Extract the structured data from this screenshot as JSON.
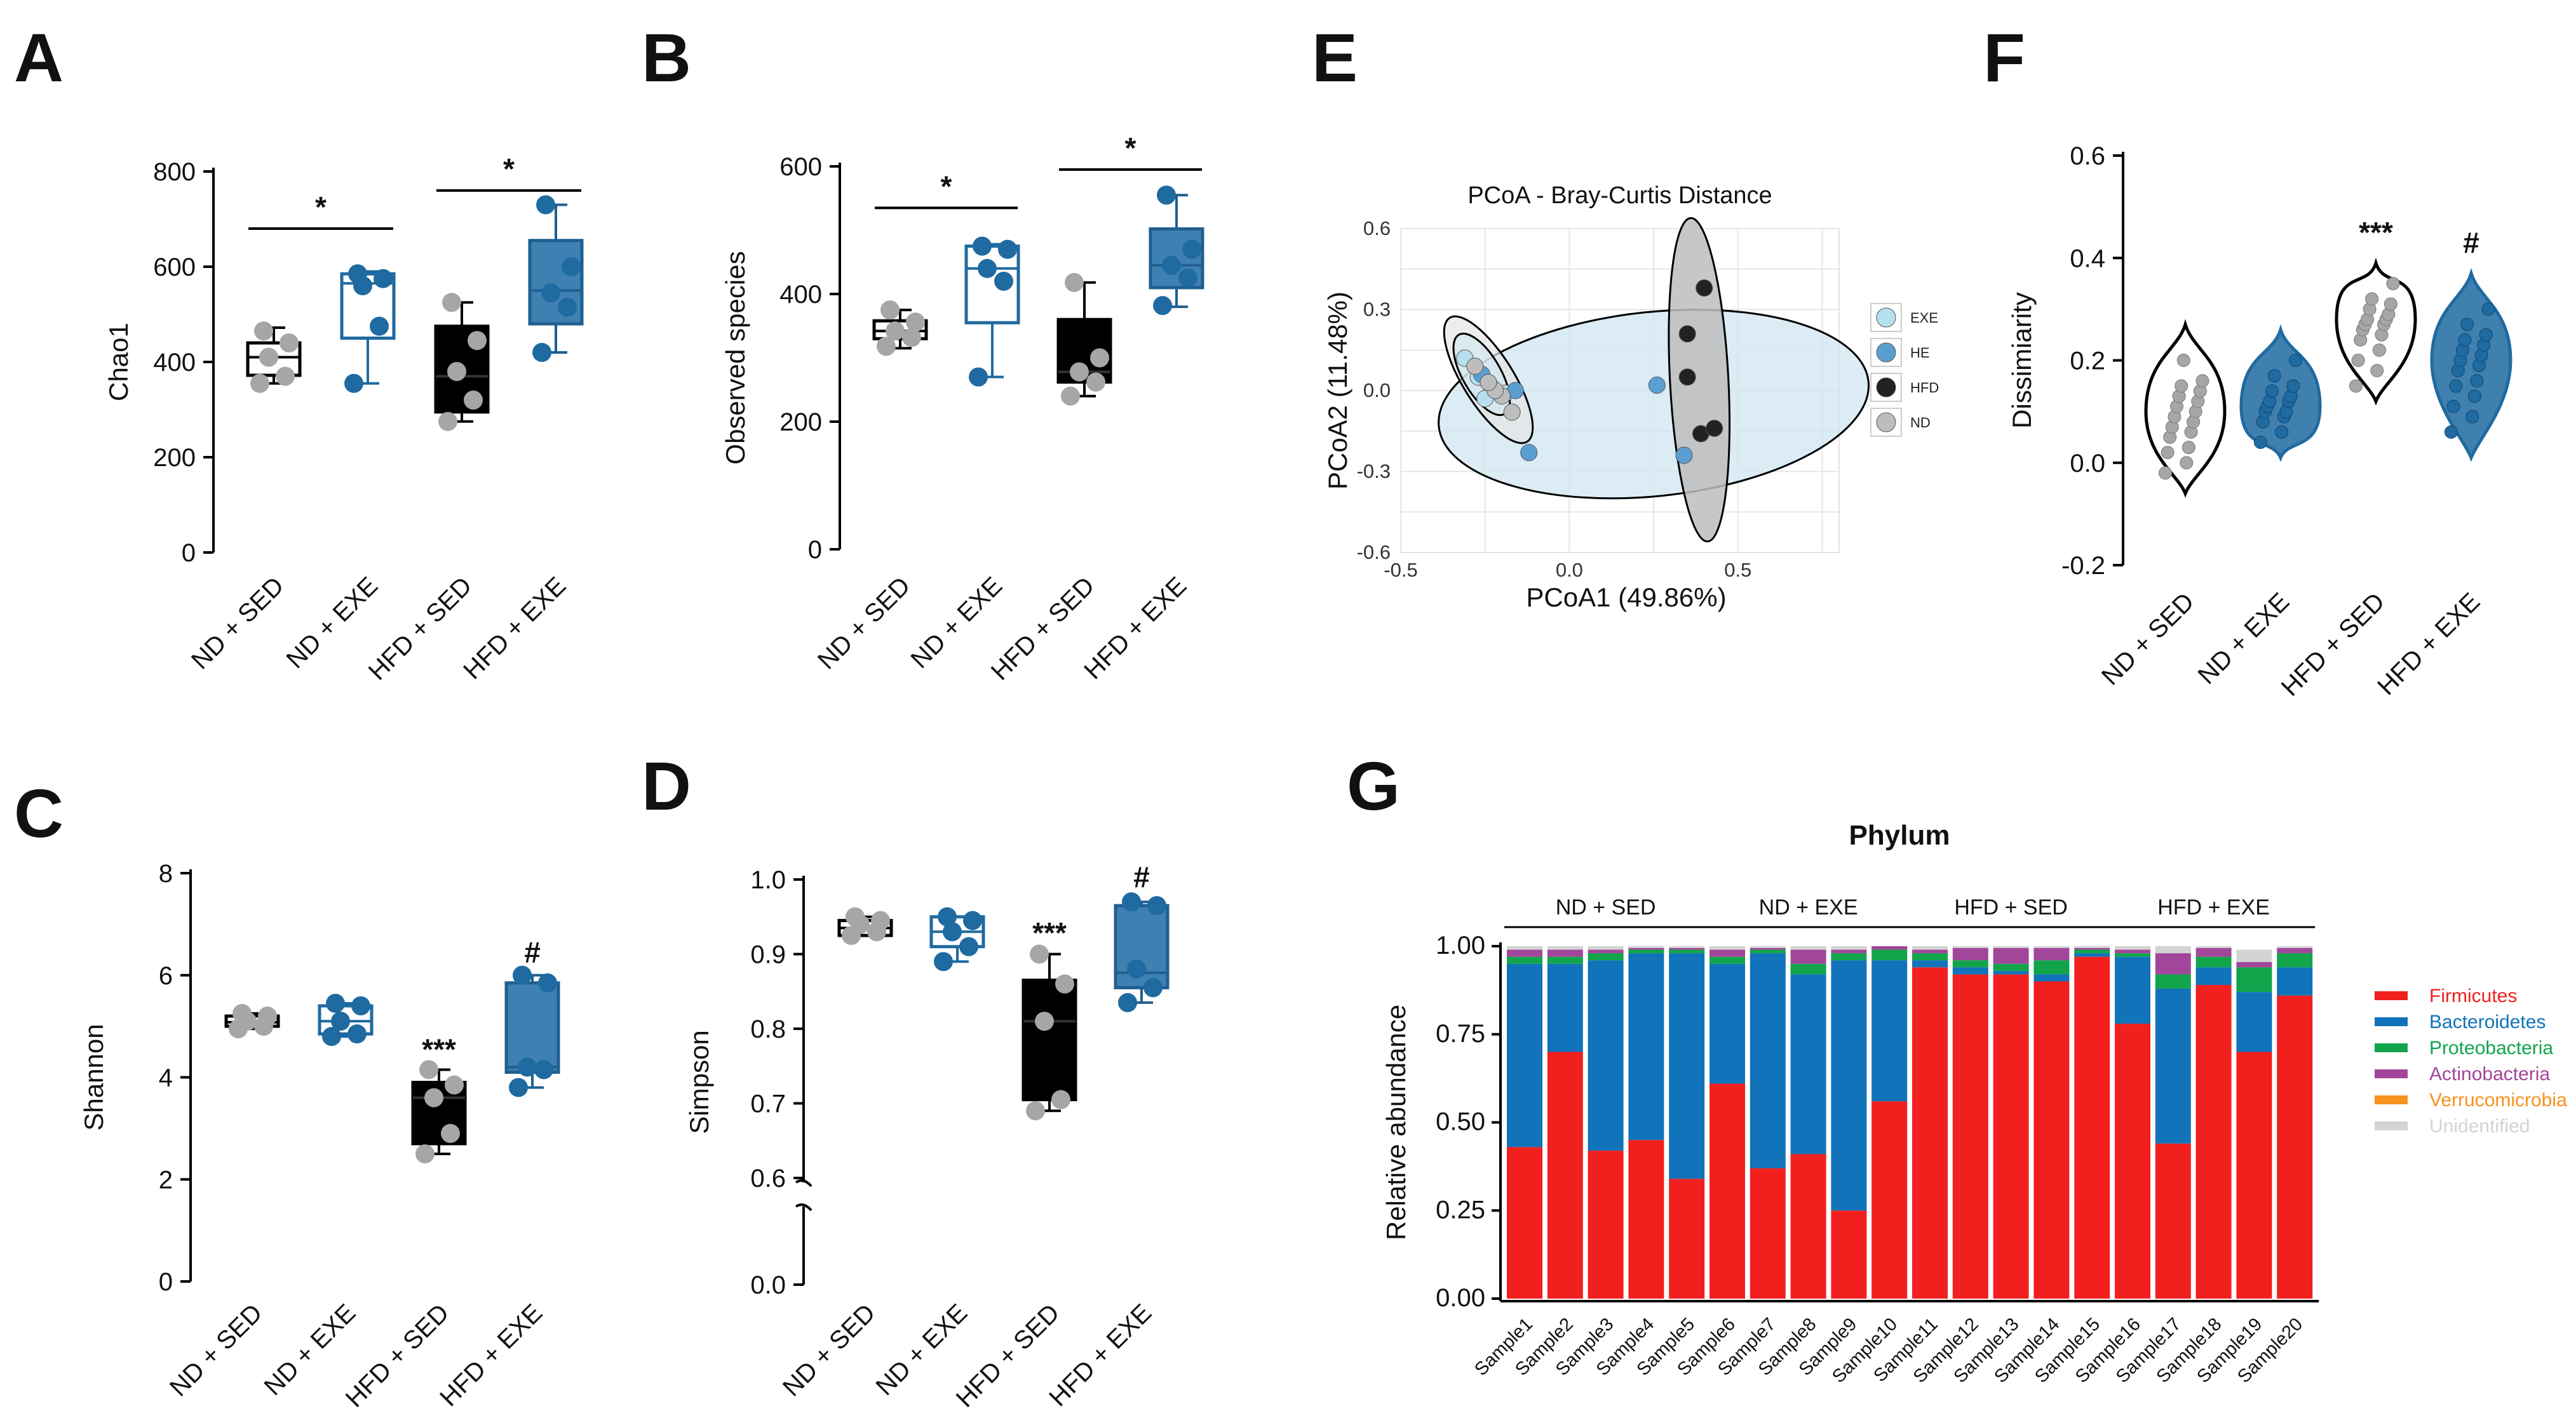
{
  "panel_letters": {
    "A": "A",
    "B": "B",
    "C": "C",
    "D": "D",
    "E": "E",
    "F": "F",
    "G": "G"
  },
  "colors": {
    "nd_sed": "#a6a6a6",
    "nd_exe": "#1f6aa0",
    "hfd_sed": "#000000",
    "hfd_exe": "#3f80b3",
    "firmicutes": "#f21f1f",
    "bacteroidetes": "#1173b9",
    "proteobacteria": "#11a44b",
    "actinobacteria": "#a2469b",
    "verrucomicrobia": "#f7921e",
    "unidentified": "#d3d3d3"
  },
  "chart_data": [
    {
      "id": "A",
      "type": "box",
      "ylabel": "Chao1",
      "ylim": [
        0,
        800
      ],
      "yticks": [
        0,
        200,
        400,
        600,
        800
      ],
      "categories": [
        "ND + SED",
        "ND + EXE",
        "HFD + SED",
        "HFD + EXE"
      ],
      "boxes": [
        {
          "min": 355,
          "q1": 372,
          "median": 410,
          "q3": 440,
          "max": 472,
          "points": [
            355,
            370,
            410,
            440,
            465
          ]
        },
        {
          "min": 355,
          "q1": 450,
          "median": 565,
          "q3": 585,
          "max": 590,
          "points": [
            355,
            475,
            560,
            575,
            585
          ]
        },
        {
          "min": 275,
          "q1": 295,
          "median": 370,
          "q3": 475,
          "max": 525,
          "points": [
            275,
            320,
            380,
            445,
            525
          ]
        },
        {
          "min": 420,
          "q1": 480,
          "median": 550,
          "q3": 655,
          "max": 730,
          "points": [
            420,
            515,
            545,
            600,
            730
          ]
        }
      ],
      "annotations": [
        {
          "text": "*",
          "from": 0,
          "to": 1,
          "y": 680
        },
        {
          "text": "*",
          "from": 2,
          "to": 3,
          "y": 760
        }
      ]
    },
    {
      "id": "B",
      "type": "box",
      "ylabel": "Observed species",
      "ylim": [
        0,
        600
      ],
      "yticks": [
        0,
        200,
        400,
        600
      ],
      "categories": [
        "ND + SED",
        "ND + EXE",
        "HFD + SED",
        "HFD + EXE"
      ],
      "boxes": [
        {
          "min": 315,
          "q1": 330,
          "median": 342,
          "q3": 358,
          "max": 375,
          "points": [
            318,
            332,
            342,
            356,
            375
          ]
        },
        {
          "min": 270,
          "q1": 355,
          "median": 440,
          "q3": 475,
          "max": 478,
          "points": [
            270,
            420,
            440,
            470,
            475
          ]
        },
        {
          "min": 240,
          "q1": 262,
          "median": 278,
          "q3": 360,
          "max": 418,
          "points": [
            240,
            262,
            278,
            300,
            418
          ]
        },
        {
          "min": 380,
          "q1": 410,
          "median": 445,
          "q3": 502,
          "max": 555,
          "points": [
            382,
            425,
            445,
            470,
            555
          ]
        }
      ],
      "annotations": [
        {
          "text": "*",
          "from": 0,
          "to": 1,
          "y": 535
        },
        {
          "text": "*",
          "from": 2,
          "to": 3,
          "y": 595
        }
      ]
    },
    {
      "id": "C",
      "type": "box",
      "ylabel": "Shannon",
      "ylim": [
        0,
        8
      ],
      "yticks": [
        0,
        2,
        4,
        6,
        8
      ],
      "categories": [
        "ND + SED",
        "ND + EXE",
        "HFD + SED",
        "HFD + EXE"
      ],
      "boxes": [
        {
          "min": 4.95,
          "q1": 5.0,
          "median": 5.08,
          "q3": 5.2,
          "max": 5.25,
          "points": [
            4.95,
            5.0,
            5.1,
            5.2,
            5.25
          ]
        },
        {
          "min": 4.8,
          "q1": 4.85,
          "median": 5.1,
          "q3": 5.4,
          "max": 5.45,
          "points": [
            4.8,
            4.85,
            5.1,
            5.4,
            5.45
          ]
        },
        {
          "min": 2.5,
          "q1": 2.7,
          "median": 3.6,
          "q3": 3.9,
          "max": 4.15,
          "points": [
            2.5,
            2.9,
            3.6,
            3.85,
            4.15
          ]
        },
        {
          "min": 3.8,
          "q1": 4.1,
          "median": 4.2,
          "q3": 5.85,
          "max": 6.0,
          "points": [
            3.8,
            4.15,
            4.2,
            5.85,
            6.0
          ]
        }
      ],
      "annotations": [
        {
          "text": "***",
          "over": 2,
          "y": 4.35
        },
        {
          "text": "#",
          "over": 3,
          "y": 6.25
        }
      ]
    },
    {
      "id": "D",
      "type": "box",
      "ylabel": "Simpson",
      "ylim": [
        0.6,
        1.0
      ],
      "yticks": [
        0.6,
        0.7,
        0.8,
        0.9,
        1.0
      ],
      "axis_break": true,
      "lower_tick": 0.0,
      "categories": [
        "ND + SED",
        "ND + EXE",
        "HFD + SED",
        "HFD + EXE"
      ],
      "boxes": [
        {
          "min": 0.925,
          "q1": 0.925,
          "median": 0.935,
          "q3": 0.945,
          "max": 0.95,
          "points": [
            0.925,
            0.93,
            0.94,
            0.945,
            0.95
          ]
        },
        {
          "min": 0.89,
          "q1": 0.91,
          "median": 0.93,
          "q3": 0.95,
          "max": 0.95,
          "points": [
            0.89,
            0.91,
            0.93,
            0.945,
            0.95
          ]
        },
        {
          "min": 0.69,
          "q1": 0.705,
          "median": 0.81,
          "q3": 0.865,
          "max": 0.9,
          "points": [
            0.69,
            0.705,
            0.81,
            0.86,
            0.9
          ]
        },
        {
          "min": 0.835,
          "q1": 0.855,
          "median": 0.875,
          "q3": 0.965,
          "max": 0.97,
          "points": [
            0.835,
            0.855,
            0.88,
            0.965,
            0.97
          ]
        }
      ],
      "annotations": [
        {
          "text": "***",
          "over": 2,
          "y": 0.915
        },
        {
          "text": "#",
          "over": 3,
          "y": 0.99
        }
      ]
    },
    {
      "id": "E",
      "type": "scatter",
      "title": "PCoA - Bray-Curtis Distance",
      "xlabel": "PCoA1 (49.86%)",
      "ylabel": "PCoA2 (11.48%)",
      "xlim": [
        -0.5,
        0.8
      ],
      "ylim": [
        -0.6,
        0.6
      ],
      "xticks": [
        "-0.5",
        "0.0",
        "0.5"
      ],
      "yticks": [
        "-0.6",
        "-0.3",
        "0.0",
        "0.3",
        "0.6"
      ],
      "legend": [
        "EXE",
        "HE",
        "HFD",
        "ND"
      ],
      "groups": [
        {
          "name": "EXE",
          "color": "#b7e0ee",
          "points": [
            [
              -0.31,
              0.12
            ],
            [
              -0.27,
              0.05
            ],
            [
              -0.23,
              0.01
            ],
            [
              -0.19,
              -0.01
            ],
            [
              -0.25,
              -0.03
            ]
          ]
        },
        {
          "name": "HE",
          "color": "#5a9fd2",
          "points": [
            [
              0.26,
              0.02
            ],
            [
              0.34,
              -0.24
            ],
            [
              -0.12,
              -0.23
            ],
            [
              -0.16,
              0.0
            ],
            [
              -0.26,
              0.06
            ]
          ]
        },
        {
          "name": "HFD",
          "color": "#222222",
          "points": [
            [
              0.4,
              0.38
            ],
            [
              0.35,
              0.21
            ],
            [
              0.35,
              0.05
            ],
            [
              0.39,
              -0.16
            ],
            [
              0.43,
              -0.14
            ]
          ]
        },
        {
          "name": "ND",
          "color": "#bdbdbd",
          "points": [
            [
              -0.28,
              0.09
            ],
            [
              -0.2,
              -0.02
            ],
            [
              -0.17,
              -0.08
            ],
            [
              -0.22,
              0.0
            ],
            [
              -0.24,
              0.03
            ]
          ]
        }
      ]
    },
    {
      "id": "F",
      "type": "violin",
      "ylabel": "Dissimiarity",
      "ylim": [
        -0.2,
        0.6
      ],
      "yticks": [
        "-0.2",
        "0.0",
        "0.2",
        "0.4",
        "0.6"
      ],
      "categories": [
        "ND + SED",
        "ND + EXE",
        "HFD + SED",
        "HFD + EXE"
      ],
      "violins": [
        {
          "min": -0.06,
          "max": 0.27,
          "mid": 0.1,
          "points": [
            -0.02,
            0.0,
            0.02,
            0.03,
            0.05,
            0.06,
            0.07,
            0.08,
            0.09,
            0.1,
            0.11,
            0.12,
            0.13,
            0.14,
            0.15,
            0.16,
            0.2
          ]
        },
        {
          "min": 0.01,
          "max": 0.26,
          "mid": 0.11,
          "points": [
            0.04,
            0.06,
            0.08,
            0.09,
            0.1,
            0.1,
            0.11,
            0.12,
            0.12,
            0.13,
            0.14,
            0.15,
            0.17,
            0.2
          ]
        },
        {
          "min": 0.12,
          "max": 0.39,
          "mid": 0.28,
          "points": [
            0.15,
            0.18,
            0.2,
            0.22,
            0.24,
            0.25,
            0.26,
            0.27,
            0.27,
            0.28,
            0.28,
            0.29,
            0.3,
            0.31,
            0.32,
            0.35
          ]
        },
        {
          "min": 0.01,
          "max": 0.37,
          "mid": 0.2,
          "points": [
            0.06,
            0.09,
            0.11,
            0.13,
            0.15,
            0.16,
            0.18,
            0.19,
            0.2,
            0.21,
            0.22,
            0.23,
            0.24,
            0.25,
            0.27,
            0.3
          ]
        }
      ],
      "annotations": [
        {
          "text": "***",
          "over": 2,
          "y": 0.43
        },
        {
          "text": "#",
          "over": 3,
          "y": 0.41
        }
      ]
    },
    {
      "id": "G",
      "type": "stacked_bar",
      "title": "Phylum",
      "ylabel": "Relative abundance",
      "ylim": [
        0,
        1
      ],
      "yticks": [
        "0.00",
        "0.25",
        "0.50",
        "0.75",
        "1.00"
      ],
      "groups": [
        {
          "label": "ND + SED",
          "from": 0,
          "to": 4
        },
        {
          "label": "ND + EXE",
          "from": 5,
          "to": 9
        },
        {
          "label": "HFD + SED",
          "from": 10,
          "to": 14
        },
        {
          "label": "HFD + EXE",
          "from": 15,
          "to": 19
        }
      ],
      "categories": [
        "Sample1",
        "Sample2",
        "Sample3",
        "Sample4",
        "Sample5",
        "Sample6",
        "Sample7",
        "Sample8",
        "Sample9",
        "Sample10",
        "Sample11",
        "Sample12",
        "Sample13",
        "Sample14",
        "Sample15",
        "Sample16",
        "Sample17",
        "Sample18",
        "Sample19",
        "Sample20"
      ],
      "series": [
        {
          "name": "Firmicutes",
          "color": "#f21f1f",
          "values": [
            0.43,
            0.7,
            0.42,
            0.45,
            0.34,
            0.61,
            0.37,
            0.41,
            0.25,
            0.56,
            0.94,
            0.92,
            0.92,
            0.9,
            0.97,
            0.78,
            0.44,
            0.89,
            0.7,
            0.86
          ]
        },
        {
          "name": "Bacteroidetes",
          "color": "#1173b9",
          "values": [
            0.52,
            0.25,
            0.54,
            0.53,
            0.64,
            0.34,
            0.61,
            0.51,
            0.71,
            0.4,
            0.02,
            0.02,
            0.01,
            0.02,
            0.01,
            0.19,
            0.44,
            0.05,
            0.17,
            0.08
          ]
        },
        {
          "name": "Proteobacteria",
          "color": "#11a44b",
          "values": [
            0.02,
            0.02,
            0.02,
            0.01,
            0.01,
            0.02,
            0.01,
            0.03,
            0.02,
            0.03,
            0.02,
            0.02,
            0.02,
            0.04,
            0.01,
            0.01,
            0.04,
            0.03,
            0.07,
            0.04
          ]
        },
        {
          "name": "Actinobacteria",
          "color": "#a2469b",
          "values": [
            0.02,
            0.02,
            0.01,
            0.005,
            0.005,
            0.02,
            0.005,
            0.04,
            0.01,
            0.01,
            0.01,
            0.035,
            0.045,
            0.035,
            0.005,
            0.01,
            0.06,
            0.025,
            0.015,
            0.015
          ]
        },
        {
          "name": "Verrucomicrobia",
          "color": "#f7921e",
          "values": [
            0.0,
            0.0,
            0.0,
            0.0,
            0.0,
            0.0,
            0.0,
            0.0,
            0.0,
            0.0,
            0.0,
            0.0,
            0.0,
            0.0,
            0.0,
            0.0,
            0.0,
            0.0,
            0.0,
            0.0
          ]
        },
        {
          "name": "Unidentified",
          "color": "#d3d3d3",
          "values": [
            0.01,
            0.01,
            0.01,
            0.005,
            0.005,
            0.01,
            0.005,
            0.01,
            0.01,
            0.0,
            0.01,
            0.005,
            0.005,
            0.005,
            0.005,
            0.01,
            0.02,
            0.005,
            0.035,
            0.005
          ]
        }
      ]
    }
  ]
}
